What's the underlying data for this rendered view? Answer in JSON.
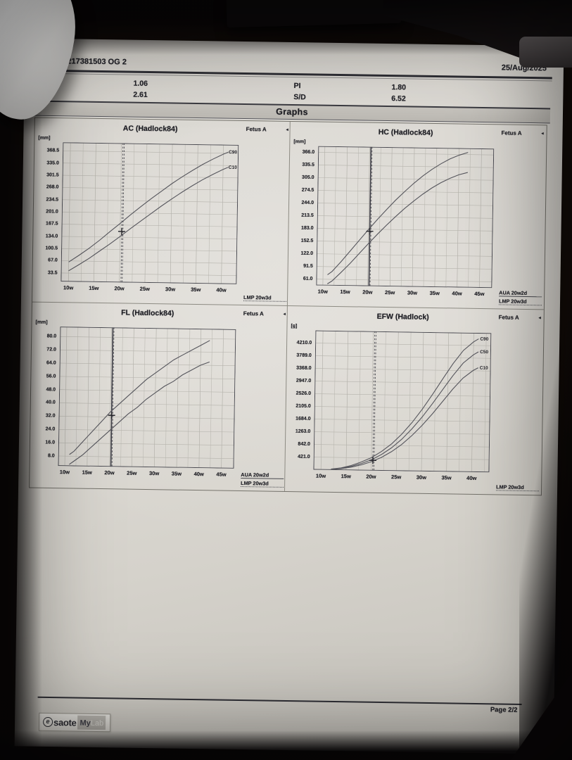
{
  "colors": {
    "paper": "#d9d6d0",
    "ink": "#232329",
    "grid": "#b5b3ac",
    "plot_border": "#4b4b52",
    "table_border": "#8d8b83"
  },
  "header": {
    "patient_line": "A, F, ID:5217381503 OG 2",
    "date": "25/Aug/2025"
  },
  "measurements": {
    "rows": [
      {
        "left_label": "",
        "left_value": "1.06",
        "right_label": "PI",
        "right_value": "1.80"
      },
      {
        "left_label": "S/D",
        "left_value": "2.61",
        "right_label": "S/D",
        "right_value": "6.52"
      }
    ]
  },
  "section_title": "Graphs",
  "chart_data": [
    {
      "type": "line",
      "title": "AC (Hadlock84)",
      "unit": "[mm]",
      "fetus_label": "Fetus A",
      "y_ticks": [
        368.5,
        335.0,
        301.5,
        268.0,
        234.5,
        201.0,
        167.5,
        134.0,
        100.5,
        67.0,
        33.5
      ],
      "x_ticks": [
        "10w",
        "15w",
        "20w",
        "25w",
        "30w",
        "35w",
        "40w"
      ],
      "x_range": [
        8.5,
        43
      ],
      "y_range": [
        10,
        392
      ],
      "grid": true,
      "side_labels": [
        "LMP 20w3d"
      ],
      "marker": {
        "week": 20.3,
        "value": 150
      },
      "vlines": [
        {
          "week": 20.3,
          "style": "dashed"
        },
        {
          "week": 20.55,
          "style": "dashed"
        }
      ],
      "series": [
        {
          "name": "C90",
          "show_label": true,
          "x": [
            10,
            12,
            14,
            16,
            18,
            20,
            22,
            24,
            26,
            28,
            30,
            32,
            34,
            36,
            38,
            40,
            41
          ],
          "y": [
            64,
            83,
            103,
            125,
            149,
            172,
            196,
            219,
            241,
            262,
            283,
            302,
            320,
            337,
            352,
            366,
            372
          ]
        },
        {
          "name": "C10",
          "show_label": true,
          "x": [
            10,
            12,
            14,
            16,
            18,
            20,
            22,
            24,
            26,
            28,
            30,
            32,
            34,
            36,
            38,
            40,
            41
          ],
          "y": [
            40,
            57,
            75,
            95,
            115,
            136,
            158,
            179,
            200,
            221,
            241,
            260,
            278,
            295,
            310,
            324,
            330
          ]
        }
      ]
    },
    {
      "type": "line",
      "title": "HC (Hadlock84)",
      "unit": "[mm]",
      "fetus_label": "Fetus A",
      "y_ticks": [
        366.0,
        335.5,
        305.0,
        274.5,
        244.0,
        213.5,
        183.0,
        152.5,
        122.0,
        91.5,
        61.0
      ],
      "x_ticks": [
        "10w",
        "15w",
        "20w",
        "25w",
        "30w",
        "35w",
        "40w",
        "45w"
      ],
      "x_range": [
        8.5,
        47.8
      ],
      "y_range": [
        46,
        381
      ],
      "grid": true,
      "side_labels": [
        "AUA 20w2d",
        "LMP 20w3d"
      ],
      "marker": {
        "week": 20.3,
        "value": 178
      },
      "vlines": [
        {
          "week": 20.3,
          "style": "solid"
        },
        {
          "week": 20.55,
          "style": "dashed"
        }
      ],
      "series": [
        {
          "name": "C90",
          "show_label": false,
          "x": [
            11,
            12,
            14,
            16,
            18,
            20,
            22,
            24,
            26,
            28,
            30,
            32,
            34,
            36,
            38,
            40,
            42
          ],
          "y": [
            72,
            80,
            104,
            130,
            156,
            182,
            207,
            231,
            254,
            275,
            295,
            313,
            329,
            343,
            355,
            364,
            371
          ]
        },
        {
          "name": "C10",
          "show_label": false,
          "x": [
            11,
            12,
            14,
            16,
            18,
            20,
            22,
            24,
            26,
            28,
            30,
            32,
            34,
            36,
            38,
            40,
            42
          ],
          "y": [
            50,
            57,
            78,
            100,
            124,
            148,
            171,
            193,
            214,
            234,
            252,
            269,
            284,
            297,
            308,
            317,
            323
          ]
        }
      ]
    },
    {
      "type": "line",
      "title": "FL (Hadlock84)",
      "unit": "[mm]",
      "fetus_label": "Fetus A",
      "y_ticks": [
        80.0,
        72.0,
        64.0,
        56.0,
        48.0,
        40.0,
        32.0,
        24.0,
        16.0,
        8.0
      ],
      "x_ticks": [
        "10w",
        "15w",
        "20w",
        "25w",
        "30w",
        "35w",
        "40w",
        "45w"
      ],
      "x_range": [
        8.5,
        47.8
      ],
      "y_range": [
        2,
        86
      ],
      "grid": true,
      "side_labels": [
        "AUA 20w2d",
        "LMP 20w3d"
      ],
      "marker": {
        "week": 20.3,
        "value": 33
      },
      "vlines": [
        {
          "week": 20.3,
          "style": "solid"
        },
        {
          "week": 20.55,
          "style": "dashed"
        }
      ],
      "series": [
        {
          "name": "C90",
          "show_label": false,
          "x": [
            11,
            12,
            14,
            16,
            18,
            20,
            22,
            24,
            26,
            28,
            30,
            32,
            34,
            36,
            38,
            40,
            42
          ],
          "y": [
            9,
            11,
            17,
            23,
            29,
            35,
            40,
            45,
            50,
            55,
            59,
            63,
            67,
            70,
            73,
            76,
            79
          ]
        },
        {
          "name": "C10",
          "show_label": false,
          "x": [
            11,
            12,
            14,
            16,
            18,
            20,
            22,
            24,
            26,
            28,
            30,
            32,
            34,
            36,
            38,
            40,
            42
          ],
          "y": [
            3,
            5,
            9,
            14,
            19,
            24,
            29,
            34,
            38,
            43,
            47,
            51,
            54,
            58,
            61,
            64,
            66
          ]
        }
      ]
    },
    {
      "type": "line",
      "title": "EFW (Hadlock)",
      "unit": "[g]",
      "fetus_label": "Fetus A",
      "y_ticks": [
        4210.0,
        3789.0,
        3368.0,
        2947.0,
        2526.0,
        2105.0,
        1684.0,
        1263.0,
        842.0,
        421.0
      ],
      "x_ticks": [
        "10w",
        "15w",
        "20w",
        "25w",
        "30w",
        "35w",
        "40w"
      ],
      "x_range": [
        8.5,
        43.5
      ],
      "y_range": [
        0,
        4631
      ],
      "grid": true,
      "side_labels": [
        "LMP 20w3d"
      ],
      "marker": {
        "week": 20.3,
        "value": 340
      },
      "vlines": [
        {
          "week": 20.3,
          "style": "dashed"
        },
        {
          "week": 20.55,
          "style": "dashed"
        }
      ],
      "series": [
        {
          "name": "C90",
          "show_label": true,
          "x": [
            12,
            14,
            16,
            18,
            20,
            22,
            24,
            26,
            28,
            30,
            32,
            34,
            36,
            38,
            40,
            41
          ],
          "y": [
            30,
            75,
            160,
            280,
            430,
            640,
            900,
            1230,
            1620,
            2070,
            2570,
            3090,
            3600,
            4040,
            4330,
            4430
          ]
        },
        {
          "name": "C50",
          "show_label": true,
          "x": [
            12,
            14,
            16,
            18,
            20,
            22,
            24,
            26,
            28,
            30,
            32,
            34,
            36,
            38,
            40,
            41
          ],
          "y": [
            25,
            60,
            130,
            230,
            360,
            540,
            770,
            1060,
            1410,
            1810,
            2260,
            2730,
            3200,
            3620,
            3900,
            4000
          ]
        },
        {
          "name": "C10",
          "show_label": true,
          "x": [
            12,
            14,
            16,
            18,
            20,
            22,
            24,
            26,
            28,
            30,
            32,
            34,
            36,
            38,
            40,
            41
          ],
          "y": [
            20,
            48,
            105,
            185,
            295,
            445,
            640,
            885,
            1185,
            1530,
            1915,
            2330,
            2750,
            3120,
            3380,
            3470
          ]
        }
      ]
    }
  ],
  "footer": {
    "page": "Page 2/2",
    "logo": {
      "e": "e",
      "brand": "saote",
      "product": "My",
      "suffix": "Lab"
    }
  }
}
